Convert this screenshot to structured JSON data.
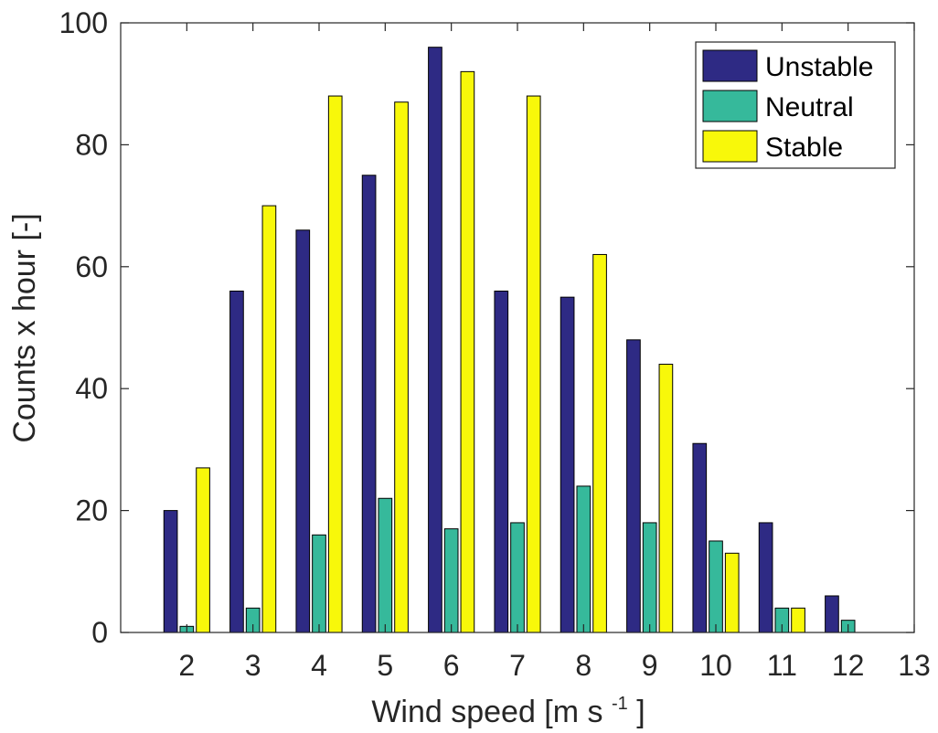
{
  "chart_data": {
    "type": "bar",
    "categories": [
      "2",
      "3",
      "4",
      "5",
      "6",
      "7",
      "8",
      "9",
      "10",
      "11",
      "12"
    ],
    "series": [
      {
        "name": "Unstable",
        "color": "#2e2a84",
        "values": [
          20,
          56,
          66,
          75,
          96,
          56,
          55,
          48,
          31,
          18,
          6
        ]
      },
      {
        "name": "Neutral",
        "color": "#36b99b",
        "values": [
          1,
          4,
          16,
          22,
          17,
          18,
          24,
          18,
          15,
          4,
          2
        ]
      },
      {
        "name": "Stable",
        "color": "#f8f80a",
        "values": [
          27,
          70,
          88,
          87,
          92,
          88,
          62,
          44,
          13,
          4,
          0
        ]
      }
    ],
    "title": "",
    "xlabel": "Wind speed [m s",
    "xlabel_superscript": "-1",
    "xlabel_suffix": "]",
    "ylabel": "Counts x hour [-]",
    "xlim": [
      1,
      13
    ],
    "ylim": [
      0,
      100
    ],
    "xticks": [
      "2",
      "3",
      "4",
      "5",
      "6",
      "7",
      "8",
      "9",
      "10",
      "11",
      "12",
      "13"
    ],
    "yticks": [
      "0",
      "20",
      "40",
      "60",
      "80",
      "100"
    ],
    "legend_position": "top-right",
    "grid": false
  }
}
